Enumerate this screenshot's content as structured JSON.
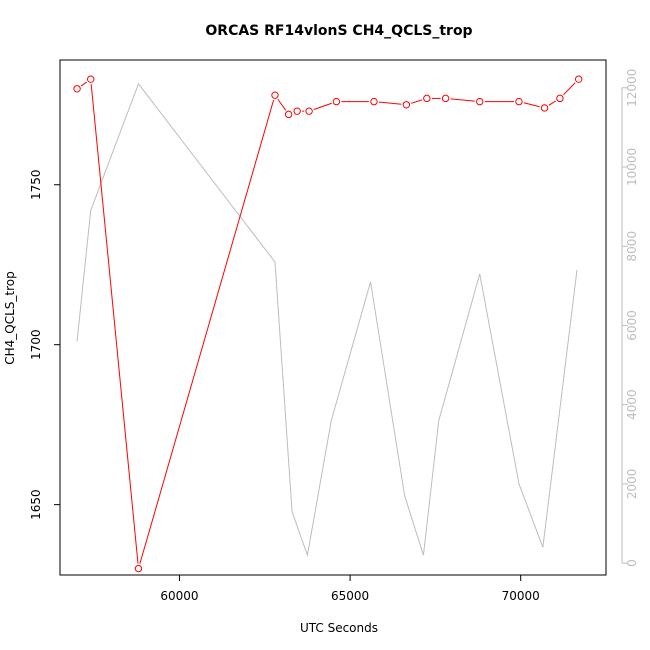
{
  "chart_data": {
    "type": "line",
    "title": "ORCAS RF14vlonS CH4_QCLS_trop",
    "xlabel": "UTC Seconds",
    "ylabel": "CH4_QCLS_trop",
    "xlim": [
      56500,
      72500
    ],
    "ylim": [
      1628,
      1789
    ],
    "x_ticks": [
      60000,
      65000,
      70000
    ],
    "y_ticks": [
      1650,
      1700,
      1750
    ],
    "y2lim": [
      -300,
      12700
    ],
    "y2_ticks": [
      0,
      2000,
      4000,
      6000,
      8000,
      10000,
      12000
    ],
    "series": [
      {
        "color": "#ff0000",
        "axis": "left",
        "marker": "open-circle",
        "points": [
          [
            57000,
            1780
          ],
          [
            57400,
            1783
          ],
          [
            58800,
            1630
          ],
          [
            62800,
            1778
          ],
          [
            63200,
            1772
          ],
          [
            63450,
            1773
          ],
          [
            63800,
            1773
          ],
          [
            64600,
            1776
          ],
          [
            65700,
            1776
          ],
          [
            66650,
            1775
          ],
          [
            67250,
            1777
          ],
          [
            67800,
            1777
          ],
          [
            68800,
            1776
          ],
          [
            69950,
            1776
          ],
          [
            70700,
            1774
          ],
          [
            71150,
            1777
          ],
          [
            71700,
            1783
          ]
        ]
      },
      {
        "color": "#bdbdbd",
        "axis": "right",
        "marker": "none",
        "points": [
          [
            57000,
            5600
          ],
          [
            57400,
            8900
          ],
          [
            58800,
            12100
          ],
          [
            62800,
            7600
          ],
          [
            63300,
            1300
          ],
          [
            63750,
            200
          ],
          [
            64450,
            3600
          ],
          [
            65600,
            7100
          ],
          [
            66600,
            1700
          ],
          [
            67150,
            200
          ],
          [
            67600,
            3600
          ],
          [
            68800,
            7300
          ],
          [
            69950,
            2000
          ],
          [
            70650,
            400
          ],
          [
            71650,
            7400
          ]
        ]
      }
    ]
  }
}
